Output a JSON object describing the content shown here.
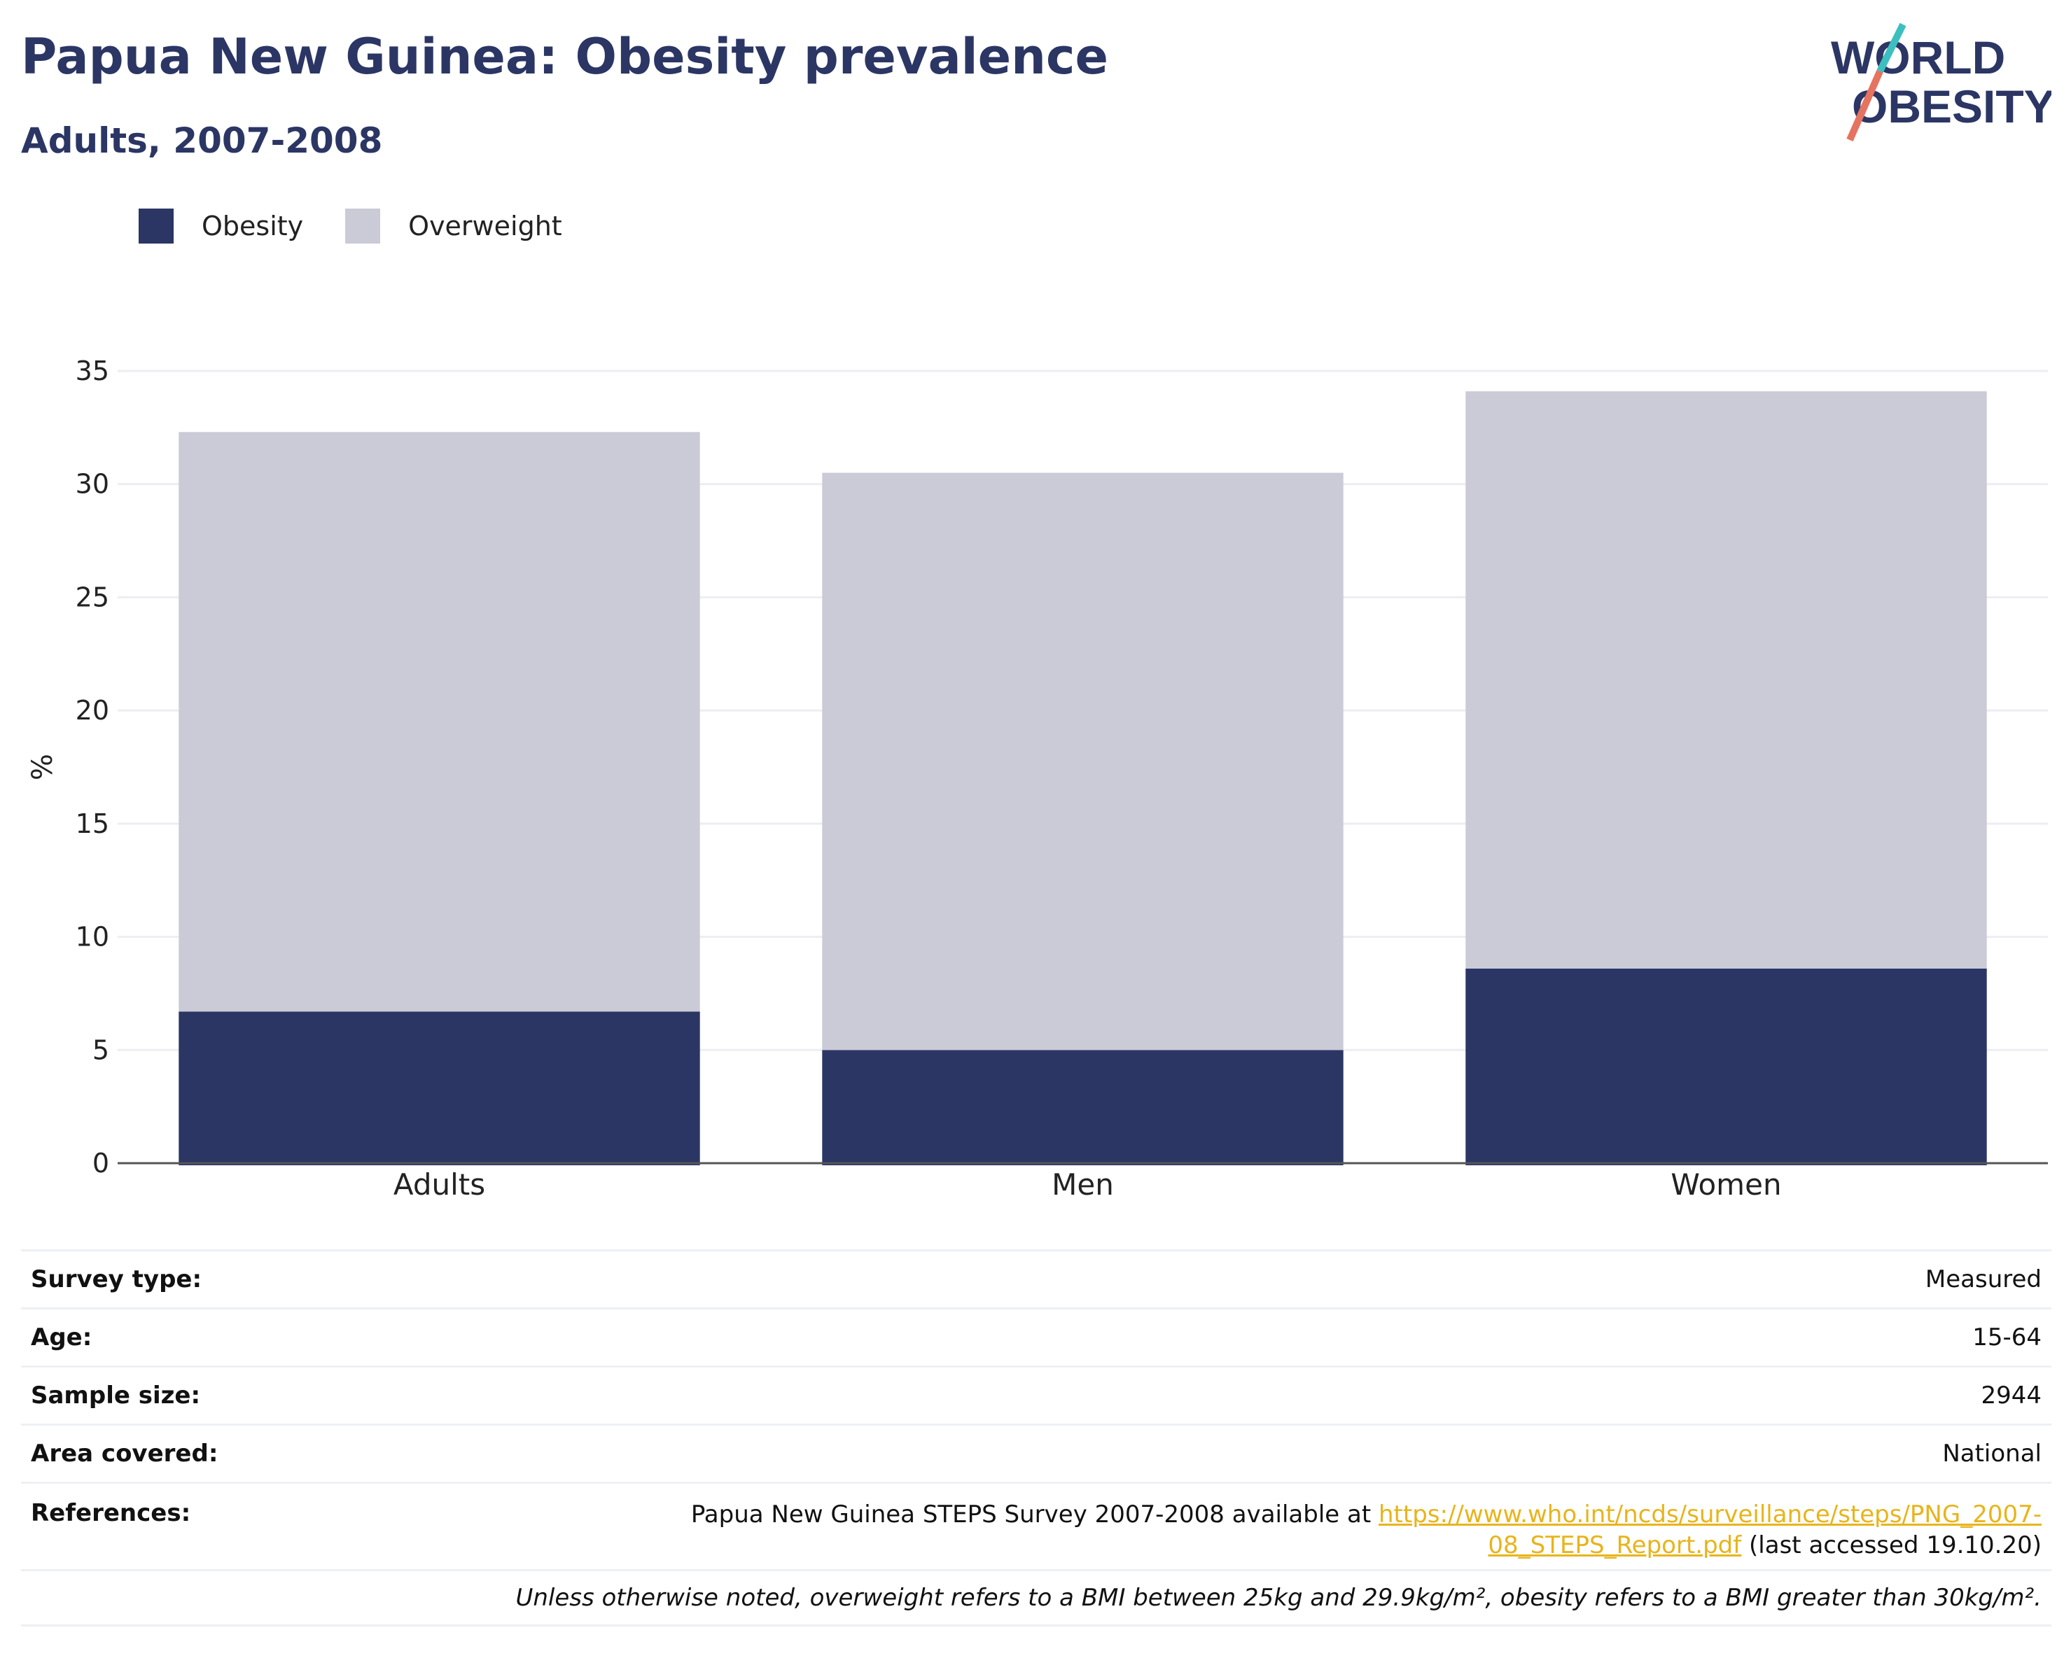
{
  "title": "Papua New Guinea: Obesity prevalence",
  "subtitle": "Adults, 2007-2008",
  "logo": {
    "line1": "WORLD",
    "line2": "OBESITY"
  },
  "colors": {
    "obesity": "#2b3664",
    "overweight": "#cacbd6",
    "accent_teal": "#3dbfbf",
    "accent_coral": "#e5735f",
    "link": "#e8b41c"
  },
  "chart_data": {
    "type": "bar",
    "stacked": true,
    "categories": [
      "Adults",
      "Men",
      "Women"
    ],
    "series": [
      {
        "name": "Obesity",
        "values": [
          6.7,
          5.0,
          8.6
        ]
      },
      {
        "name": "Overweight",
        "values": [
          25.6,
          25.5,
          25.5
        ]
      }
    ],
    "xlabel": "",
    "ylabel": "%",
    "ylim": [
      0,
      35
    ],
    "yticks": [
      0,
      5,
      10,
      15,
      20,
      25,
      30,
      35
    ],
    "grid": true,
    "legend": "top-left"
  },
  "info": {
    "survey_type": {
      "label": "Survey type:",
      "value": "Measured"
    },
    "age": {
      "label": "Age:",
      "value": "15-64"
    },
    "sample_size": {
      "label": "Sample size:",
      "value": "2944"
    },
    "area": {
      "label": "Area covered:",
      "value": "National"
    },
    "references": {
      "label": "References:",
      "text_before": "Papua New Guinea STEPS Survey 2007-2008 available at ",
      "link_line1": "https://www.who.int/ncds/surveillance/steps/PNG_2007-",
      "link_line2": "08_STEPS_Report.pdf",
      "text_after": " (last accessed 19.10.20)"
    },
    "note": "Unless otherwise noted, overweight refers to a BMI between 25kg and 29.9kg/m², obesity refers to a BMI greater than 30kg/m²."
  }
}
